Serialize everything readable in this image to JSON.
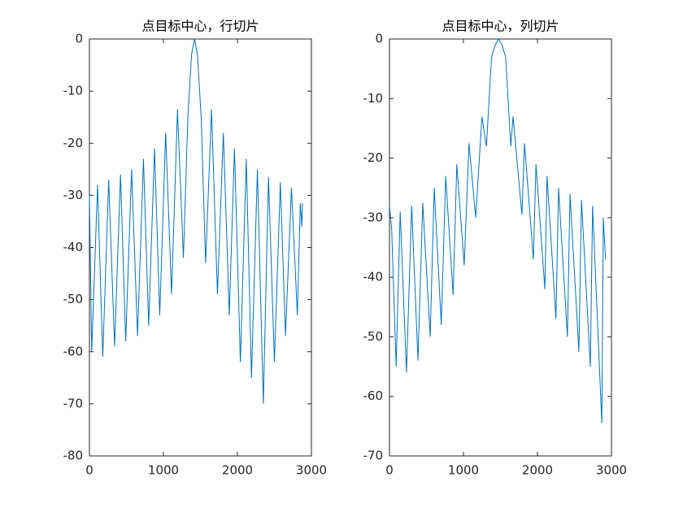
{
  "chart_data": [
    {
      "type": "line",
      "title": "点目标中心，行切片",
      "x": [
        0,
        30,
        110,
        180,
        260,
        340,
        420,
        490,
        570,
        650,
        730,
        800,
        880,
        950,
        1030,
        1110,
        1190,
        1270,
        1330,
        1380,
        1420,
        1460,
        1510,
        1570,
        1650,
        1730,
        1810,
        1890,
        1960,
        2040,
        2120,
        2190,
        2270,
        2350,
        2420,
        2500,
        2580,
        2650,
        2730,
        2810,
        2850,
        2870,
        2880
      ],
      "series": [
        {
          "color": "#0072bd",
          "values": [
            -30,
            -60,
            -28,
            -61,
            -27,
            -59,
            -26,
            -58,
            -25,
            -57,
            -23,
            -55,
            -21,
            -53,
            -18,
            -49,
            -13.5,
            -42,
            -15,
            -3,
            0,
            -3,
            -15,
            -43,
            -13.5,
            -49,
            -18,
            -53,
            -21,
            -62,
            -23,
            -65,
            -25,
            -70,
            -26.5,
            -62,
            -27.5,
            -57,
            -28.5,
            -53,
            -31.5,
            -36,
            -31.5
          ]
        }
      ],
      "xlim": [
        0,
        3000
      ],
      "ylim": [
        -80,
        0
      ],
      "xticks": [
        0,
        1000,
        2000,
        3000
      ],
      "yticks": [
        -80,
        -70,
        -60,
        -50,
        -40,
        -30,
        -20,
        -10,
        0
      ]
    },
    {
      "type": "line",
      "title": "点目标中心，列切片",
      "x": [
        0,
        30,
        90,
        145,
        230,
        300,
        385,
        450,
        550,
        605,
        700,
        760,
        860,
        910,
        1010,
        1075,
        1165,
        1250,
        1310,
        1380,
        1430,
        1473,
        1520,
        1570,
        1640,
        1670,
        1790,
        1825,
        1945,
        1980,
        2100,
        2130,
        2250,
        2285,
        2405,
        2440,
        2560,
        2595,
        2715,
        2745,
        2870,
        2890,
        2920
      ],
      "series": [
        {
          "color": "#0072bd",
          "values": [
            -28,
            -32,
            -55,
            -29,
            -56,
            -28,
            -54,
            -27.5,
            -50,
            -25,
            -48,
            -23,
            -43,
            -21,
            -38,
            -17.5,
            -30,
            -13,
            -18,
            -3,
            -1,
            0,
            -1,
            -3,
            -18,
            -13,
            -29.5,
            -17.5,
            -37,
            -21,
            -42,
            -23,
            -47,
            -25,
            -50,
            -26,
            -52.5,
            -27,
            -55,
            -28,
            -64.5,
            -30,
            -37
          ]
        }
      ],
      "xlim": [
        0,
        3000
      ],
      "ylim": [
        -70,
        0
      ],
      "xticks": [
        0,
        1000,
        2000,
        3000
      ],
      "yticks": [
        -70,
        -60,
        -50,
        -40,
        -30,
        -20,
        -10,
        0
      ]
    }
  ]
}
